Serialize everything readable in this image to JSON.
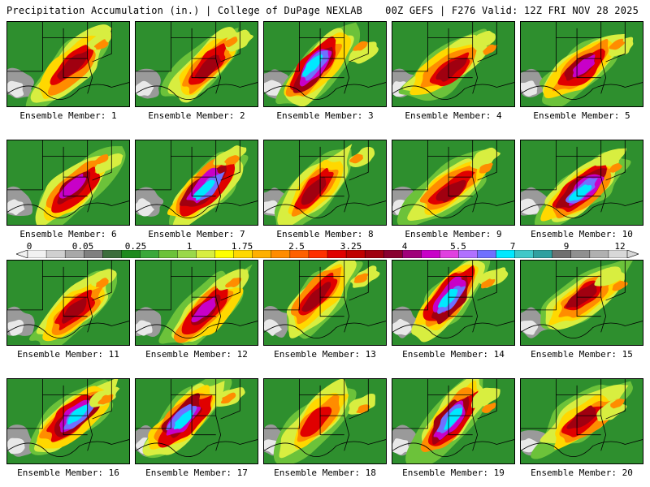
{
  "header": {
    "title": "Precipitation Accumulation (in.) | College of DuPage NEXLAB",
    "run_info": "00Z GEFS | F276 Valid: 12Z FRI NOV 28 2025"
  },
  "caption_prefix": "Ensemble Member:",
  "members": [
    {
      "label": "Ensemble Member: 1",
      "max": "3.25"
    },
    {
      "label": "Ensemble Member: 2",
      "max": "4"
    },
    {
      "label": "Ensemble Member: 3",
      "max": "7"
    },
    {
      "label": "Ensemble Member: 4",
      "max": "4"
    },
    {
      "label": "Ensemble Member: 5",
      "max": "5.5"
    },
    {
      "label": "Ensemble Member: 6",
      "max": "5.5"
    },
    {
      "label": "Ensemble Member: 7",
      "max": "7"
    },
    {
      "label": "Ensemble Member: 8",
      "max": "4"
    },
    {
      "label": "Ensemble Member: 9",
      "max": "4"
    },
    {
      "label": "Ensemble Member: 10",
      "max": "7"
    },
    {
      "label": "Ensemble Member: 11",
      "max": "3.25"
    },
    {
      "label": "Ensemble Member: 12",
      "max": "5.5"
    },
    {
      "label": "Ensemble Member: 13",
      "max": "3.25"
    },
    {
      "label": "Ensemble Member: 14",
      "max": "7"
    },
    {
      "label": "Ensemble Member: 15",
      "max": "3.25"
    },
    {
      "label": "Ensemble Member: 16",
      "max": "7"
    },
    {
      "label": "Ensemble Member: 17",
      "max": "7"
    },
    {
      "label": "Ensemble Member: 18",
      "max": "2.5"
    },
    {
      "label": "Ensemble Member: 19",
      "max": "7"
    },
    {
      "label": "Ensemble Member: 20",
      "max": "4"
    }
  ],
  "colorbar": {
    "labels": [
      "0",
      "0.05",
      "0.25",
      "1",
      "1.75",
      "2.5",
      "3.25",
      "4",
      "5.5",
      "7",
      "9",
      "12"
    ],
    "colors": [
      "#f2f2f2",
      "#d0d0d0",
      "#a8a8a8",
      "#808080",
      "#3c6e3c",
      "#1f8a1f",
      "#3aa83a",
      "#6cc23a",
      "#9ad84a",
      "#d8ee40",
      "#ffff00",
      "#ffd800",
      "#ffb000",
      "#ff8c00",
      "#ff6000",
      "#ff3000",
      "#e00000",
      "#c00000",
      "#a00010",
      "#8a0030",
      "#a0007a",
      "#c800c8",
      "#e040e0",
      "#b070ff",
      "#7070ff",
      "#00e8ff",
      "#40c8c8",
      "#30a0a0",
      "#707070",
      "#909090",
      "#b0b0b0",
      "#d8d8d8"
    ]
  }
}
